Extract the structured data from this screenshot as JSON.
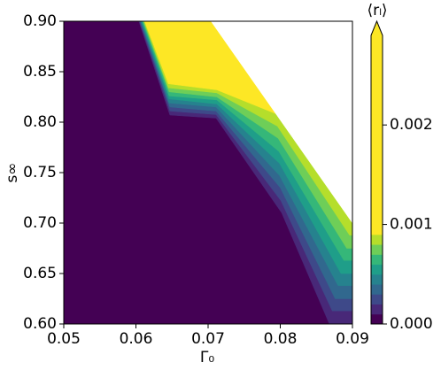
{
  "chart_data": {
    "type": "contour",
    "xlabel": "Γ₀",
    "ylabel": "s∞",
    "xlim": [
      0.05,
      0.09
    ],
    "ylim": [
      0.6,
      0.9
    ],
    "xticks": [
      0.05,
      0.06,
      0.07,
      0.08,
      0.09
    ],
    "yticks": [
      {
        "value": 0.6,
        "label": "0.60"
      },
      0.65,
      {
        "value": 0.7,
        "label": "0.70"
      },
      0.75,
      {
        "value": 0.8,
        "label": "0.80"
      },
      0.85,
      {
        "value": 0.9,
        "label": "0.90"
      }
    ],
    "regions": [
      {
        "level": 0,
        "color": "#440154",
        "x": [
          0.05,
          0.09,
          0.09,
          0.05
        ],
        "y": [
          0.6,
          0.6,
          0.9,
          0.9
        ]
      },
      {
        "level": 0.0001,
        "color": "#482878",
        "x": [
          0.0604,
          0.0647,
          0.0711,
          0.0802,
          0.0868,
          0.09,
          0.09
        ],
        "y": [
          0.9,
          0.807,
          0.804,
          0.71,
          0.6,
          0.6,
          0.9
        ]
      },
      {
        "level": 0.0002,
        "color": "#3e4989",
        "x": [
          0.0605,
          0.0647,
          0.0711,
          0.0801,
          0.0872,
          0.09,
          0.09
        ],
        "y": [
          0.9,
          0.811,
          0.8075,
          0.722,
          0.613,
          0.613,
          0.9
        ]
      },
      {
        "level": 0.0003,
        "color": "#31688e",
        "x": [
          0.0606,
          0.0647,
          0.0711,
          0.08,
          0.0876,
          0.09,
          0.09
        ],
        "y": [
          0.9,
          0.815,
          0.811,
          0.735,
          0.625,
          0.625,
          0.9
        ]
      },
      {
        "level": 0.0004,
        "color": "#26828e",
        "x": [
          0.0607,
          0.0646,
          0.0711,
          0.0799,
          0.088,
          0.09,
          0.09
        ],
        "y": [
          0.9,
          0.819,
          0.815,
          0.747,
          0.638,
          0.638,
          0.9
        ]
      },
      {
        "level": 0.0005,
        "color": "#1f9e89",
        "x": [
          0.0608,
          0.0646,
          0.0712,
          0.0799,
          0.0884,
          0.09,
          0.09
        ],
        "y": [
          0.9,
          0.823,
          0.818,
          0.759,
          0.65,
          0.65,
          0.9
        ]
      },
      {
        "level": 0.0006,
        "color": "#35b779",
        "x": [
          0.0609,
          0.0646,
          0.0712,
          0.0798,
          0.0888,
          0.09,
          0.09
        ],
        "y": [
          0.9,
          0.826,
          0.822,
          0.771,
          0.663,
          0.663,
          0.9
        ]
      },
      {
        "level": 0.0007,
        "color": "#6ece58",
        "x": [
          0.061,
          0.0646,
          0.0712,
          0.0797,
          0.0892,
          0.09,
          0.09
        ],
        "y": [
          0.9,
          0.83,
          0.825,
          0.784,
          0.675,
          0.675,
          0.9
        ]
      },
      {
        "level": 0.0008,
        "color": "#b5de2b",
        "x": [
          0.0611,
          0.0645,
          0.0712,
          0.0796,
          0.0896,
          0.09,
          0.09
        ],
        "y": [
          0.9,
          0.834,
          0.829,
          0.796,
          0.688,
          0.688,
          0.9
        ]
      },
      {
        "level": 0.0009,
        "color": "#fde725",
        "x": [
          0.0612,
          0.0645,
          0.0712,
          0.0795,
          0.09,
          0.09,
          0.09
        ],
        "y": [
          0.9,
          0.838,
          0.832,
          0.808,
          0.7,
          0.7,
          0.9
        ]
      }
    ],
    "mask": {
      "color": "#ffffff",
      "x": [
        0.0704,
        0.09,
        0.09
      ],
      "y": [
        0.9,
        0.7,
        0.9
      ]
    },
    "colorbar": {
      "label": "⟨rₗ⟩",
      "clim": [
        0,
        0.0029
      ],
      "ticks": [
        {
          "value": 0,
          "label": "0.000"
        },
        {
          "value": 0.001,
          "label": "0.001"
        },
        {
          "value": 0.002,
          "label": "0.002"
        }
      ]
    }
  }
}
